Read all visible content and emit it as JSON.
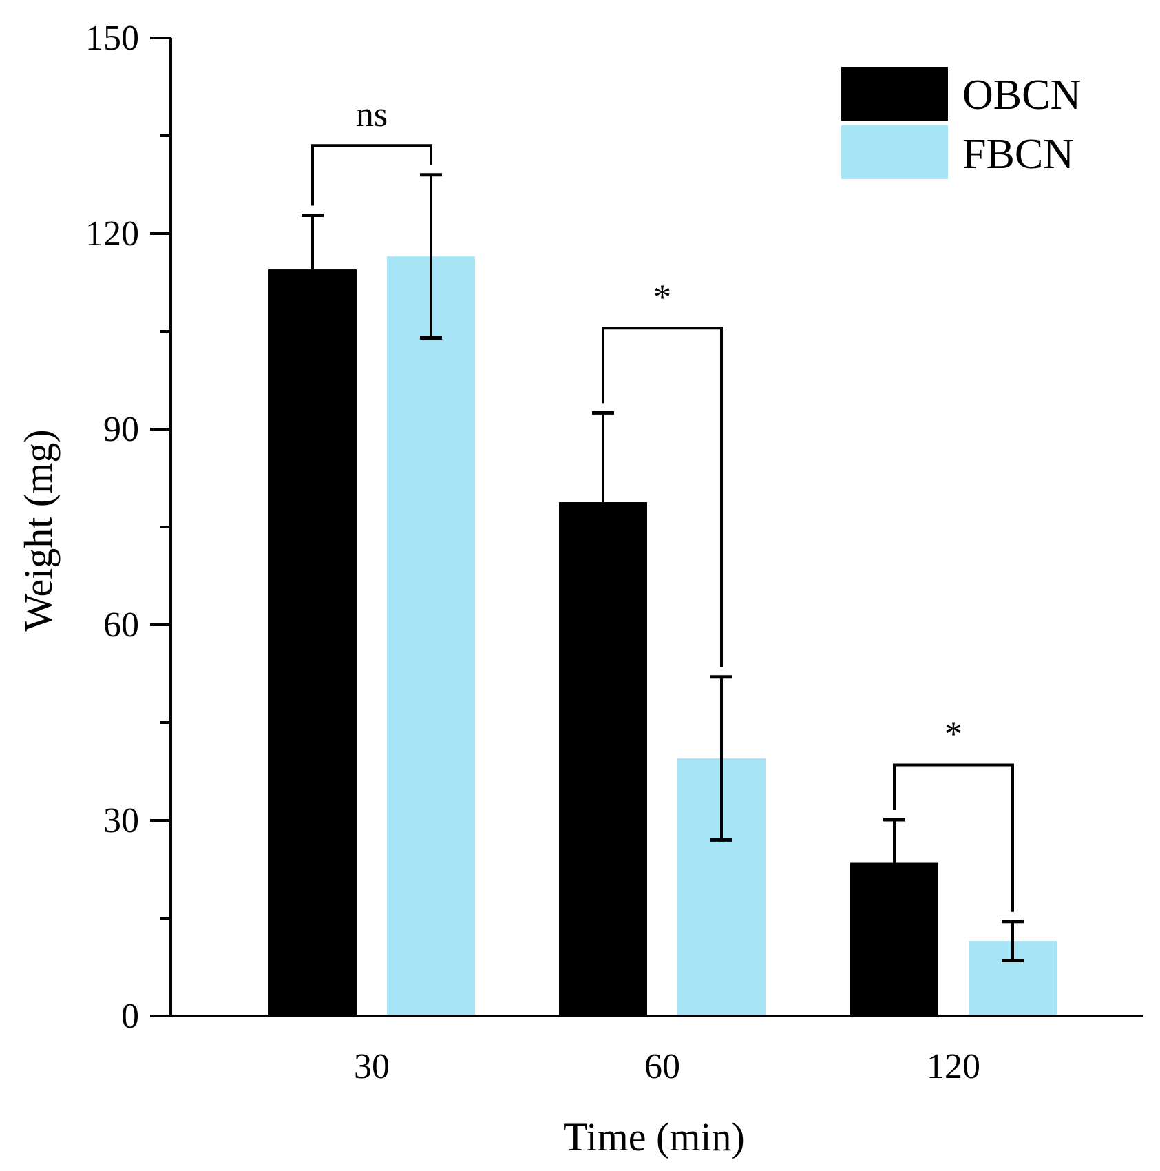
{
  "chart_data": {
    "type": "bar",
    "xlabel": "Time (min)",
    "ylabel": "Weight (mg)",
    "categories": [
      "30",
      "60",
      "120"
    ],
    "ylim": [
      0,
      150
    ],
    "yticks": [
      0,
      30,
      60,
      90,
      120,
      150
    ],
    "grid": false,
    "legend_position": "top-right",
    "series": [
      {
        "name": "OBCN",
        "color": "#000000",
        "values": [
          114.5,
          78.8,
          23.5
        ],
        "errors": [
          8.3,
          13.7,
          6.6
        ]
      },
      {
        "name": "FBCN",
        "color": "#a6e4f6",
        "values": [
          116.5,
          39.5,
          11.5
        ],
        "errors": [
          12.5,
          12.5,
          3.0
        ]
      }
    ],
    "significance": [
      {
        "category": "30",
        "label": "ns"
      },
      {
        "category": "60",
        "label": "*"
      },
      {
        "category": "120",
        "label": "*"
      }
    ]
  }
}
